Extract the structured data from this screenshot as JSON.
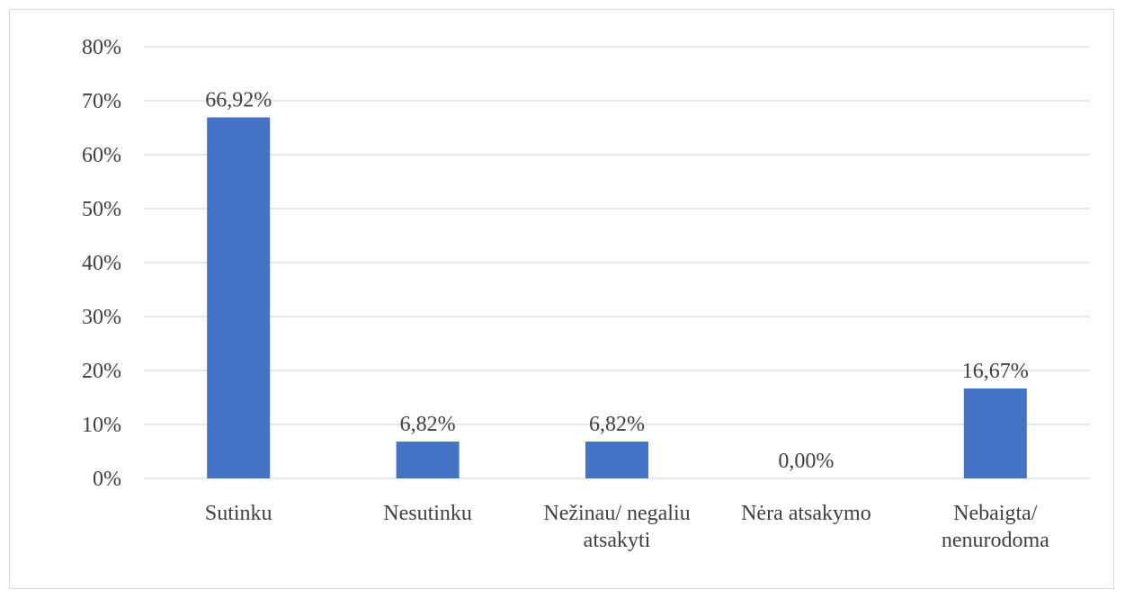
{
  "chart_data": {
    "type": "bar",
    "title": "",
    "xlabel": "",
    "ylabel": "",
    "categories": [
      [
        "Sutinku"
      ],
      [
        "Nesutinku"
      ],
      [
        "Nežinau/ negaliu",
        "atsakyti"
      ],
      [
        "Nėra atsakymo"
      ],
      [
        "Nebaigta/",
        "nenurodoma"
      ]
    ],
    "values": [
      66.92,
      6.82,
      6.82,
      0.0,
      16.67
    ],
    "data_labels": [
      "66,92%",
      "6,82%",
      "6,82%",
      "0,00%",
      "16,67%"
    ],
    "ylim": [
      0,
      80
    ],
    "yticks": [
      0,
      10,
      20,
      30,
      40,
      50,
      60,
      70,
      80
    ],
    "ytick_labels": [
      "0%",
      "10%",
      "20%",
      "30%",
      "40%",
      "50%",
      "60%",
      "70%",
      "80%"
    ],
    "grid": true,
    "legend": "none",
    "colors": {
      "bar": "#4472c4",
      "grid": "#d9d9d9",
      "text": "#404040"
    }
  }
}
